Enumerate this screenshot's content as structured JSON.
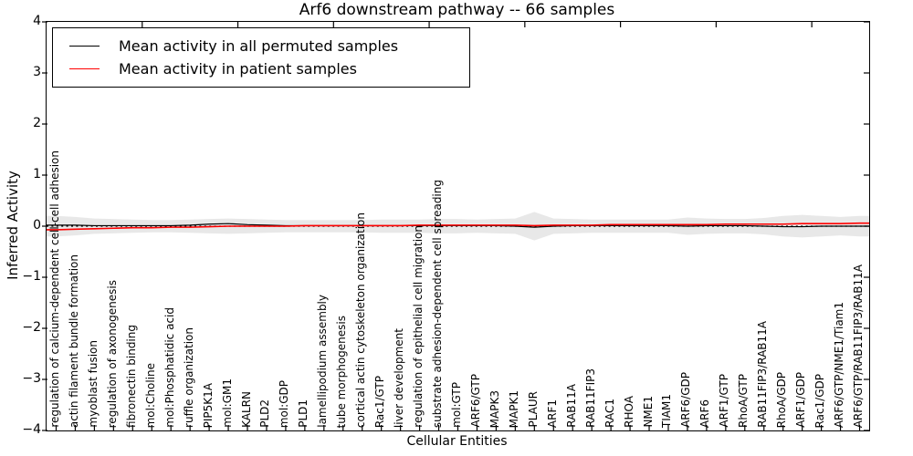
{
  "figure": {
    "background": "#ffffff",
    "axis_color": "#000000"
  },
  "chart_data": {
    "type": "line",
    "title": "Arf6 downstream pathway -- 66 samples",
    "xlabel": "Cellular Entities",
    "ylabel": "Inferred Activity",
    "ylim": [
      -4,
      4
    ],
    "xlim_units": 43,
    "grid": false,
    "legend_position": "upper left",
    "ytick_values": [
      4,
      3,
      2,
      1,
      0,
      -1,
      -2,
      -3,
      -4
    ],
    "ytick_labels": [
      "4",
      "3",
      "2",
      "1",
      "0",
      "−1",
      "−2",
      "−3",
      "−4"
    ],
    "top_tick_units": [
      5,
      10,
      15,
      20,
      25,
      30,
      35,
      40
    ],
    "zero_line": {
      "value": 0,
      "style": "dotted",
      "color": "#000000"
    },
    "categories": [
      "regulation of calcium-dependent cell-cell adhesion",
      "actin filament bundle formation",
      "myoblast fusion",
      "regulation of axonogenesis",
      "fibronectin binding",
      "mol:Choline",
      "mol:Phosphatidic acid",
      "ruffle organization",
      "PIP5K1A",
      "mol:GM1",
      "KALRN",
      "PLD2",
      "mol:GDP",
      "PLD1",
      "lamellipodium assembly",
      "tube morphogenesis",
      "cortical actin cytoskeleton organization",
      "Rac1/GTP",
      "liver development",
      "regulation of epithelial cell migration",
      "substrate adhesion-dependent cell spreading",
      "mol:GTP",
      "ARF6/GTP",
      "MAPK3",
      "MAPK1",
      "PLAUR",
      "ARF1",
      "RAB11A",
      "RAB11FIP3",
      "RAC1",
      "RHOA",
      "NME1",
      "TIAM1",
      "ARF6/GDP",
      "ARF6",
      "ARF1/GTP",
      "RhoA/GTP",
      "RAB11FIP3/RAB11A",
      "RhoA/GDP",
      "ARF1/GDP",
      "Rac1/GDP",
      "ARF6/GTP/NME1/Tiam1",
      "ARF6/GTP/RAB11FIP3/RAB11A"
    ],
    "series": [
      {
        "name": "Mean activity in all permuted samples",
        "color": "#000000",
        "values": [
          0.02,
          0.02,
          0.01,
          0.01,
          0.01,
          0.01,
          0.01,
          0.02,
          0.04,
          0.05,
          0.03,
          0.02,
          0.01,
          0.01,
          0.01,
          0.01,
          0.01,
          0.01,
          0.01,
          0.01,
          0.01,
          0.01,
          0.01,
          0.01,
          0.0,
          -0.02,
          0.0,
          0.01,
          0.01,
          0.01,
          0.01,
          0.01,
          0.01,
          0.0,
          0.01,
          0.01,
          0.01,
          0.0,
          -0.01,
          -0.01,
          0.0,
          0.0,
          0.0
        ]
      },
      {
        "name": "Mean activity in patient samples",
        "color": "#ff0000",
        "values": [
          -0.07,
          -0.06,
          -0.05,
          -0.04,
          -0.03,
          -0.03,
          -0.02,
          -0.02,
          -0.01,
          0.0,
          0.0,
          0.0,
          0.0,
          0.01,
          0.01,
          0.01,
          0.01,
          0.01,
          0.01,
          0.02,
          0.02,
          0.02,
          0.02,
          0.02,
          0.02,
          0.01,
          0.02,
          0.02,
          0.02,
          0.03,
          0.03,
          0.03,
          0.03,
          0.03,
          0.03,
          0.04,
          0.04,
          0.04,
          0.04,
          0.05,
          0.05,
          0.05,
          0.06
        ]
      }
    ],
    "band": {
      "name": "permuted-activity-range",
      "color": "#e8e8e8",
      "upper": [
        0.2,
        0.18,
        0.15,
        0.14,
        0.13,
        0.12,
        0.12,
        0.13,
        0.14,
        0.15,
        0.14,
        0.13,
        0.12,
        0.12,
        0.12,
        0.12,
        0.12,
        0.13,
        0.13,
        0.13,
        0.14,
        0.14,
        0.13,
        0.14,
        0.15,
        0.28,
        0.15,
        0.14,
        0.13,
        0.13,
        0.13,
        0.13,
        0.13,
        0.17,
        0.15,
        0.14,
        0.14,
        0.16,
        0.2,
        0.22,
        0.2,
        0.18,
        0.2
      ],
      "lower": [
        -0.2,
        -0.18,
        -0.15,
        -0.14,
        -0.13,
        -0.12,
        -0.12,
        -0.13,
        -0.14,
        -0.15,
        -0.14,
        -0.13,
        -0.12,
        -0.12,
        -0.12,
        -0.12,
        -0.12,
        -0.13,
        -0.13,
        -0.13,
        -0.14,
        -0.14,
        -0.13,
        -0.14,
        -0.15,
        -0.28,
        -0.15,
        -0.14,
        -0.13,
        -0.13,
        -0.13,
        -0.13,
        -0.13,
        -0.17,
        -0.15,
        -0.14,
        -0.14,
        -0.16,
        -0.2,
        -0.22,
        -0.2,
        -0.18,
        -0.2
      ]
    }
  }
}
